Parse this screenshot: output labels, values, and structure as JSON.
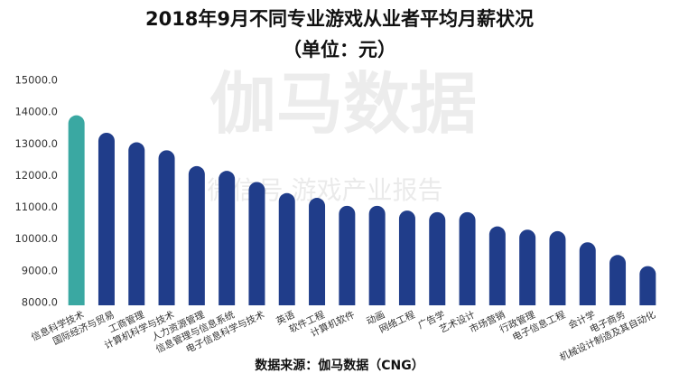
{
  "chart_data": {
    "type": "bar",
    "title": "2018年9月不同专业游戏从业者平均月薪状况",
    "subtitle": "（单位：元）",
    "source": "数据来源：伽马数据（CNG）",
    "watermark": "伽马数据",
    "watermark_sub": "微信号  游戏产业报告",
    "categories": [
      "信息科学技术",
      "国际经济与贸易",
      "工商管理",
      "计算机科学与技术",
      "人力资源管理",
      "信息管理与信息系统",
      "电子信息科学与技术",
      "英语",
      "软件工程",
      "计算机软件",
      "动画",
      "网络工程",
      "广告学",
      "艺术设计",
      "市场营销",
      "行政管理",
      "电子信息工程",
      "会计学",
      "电子商务",
      "机械设计制造及其自动化"
    ],
    "values": [
      13900,
      13350,
      13050,
      12800,
      12300,
      12150,
      11800,
      11450,
      11300,
      11050,
      11050,
      10900,
      10850,
      10850,
      10400,
      10300,
      10250,
      9900,
      9500,
      9150
    ],
    "colors": [
      "#3aa8a2",
      "#203d8a",
      "#203d8a",
      "#203d8a",
      "#203d8a",
      "#203d8a",
      "#203d8a",
      "#203d8a",
      "#203d8a",
      "#203d8a",
      "#203d8a",
      "#203d8a",
      "#203d8a",
      "#203d8a",
      "#203d8a",
      "#203d8a",
      "#203d8a",
      "#203d8a",
      "#203d8a",
      "#203d8a"
    ],
    "ylim": [
      8000,
      15000
    ],
    "yticks": [
      {
        "value": 8000,
        "label": "8000.0"
      },
      {
        "value": 9000,
        "label": "9000.0"
      },
      {
        "value": 10000,
        "label": "10000.0"
      },
      {
        "value": 11000,
        "label": "11000.0"
      },
      {
        "value": 12000,
        "label": "12000.0"
      },
      {
        "value": 13000,
        "label": "13000.0"
      },
      {
        "value": 14000,
        "label": "14000.0"
      },
      {
        "value": 15000,
        "label": "15000.0"
      }
    ],
    "grid": false
  }
}
